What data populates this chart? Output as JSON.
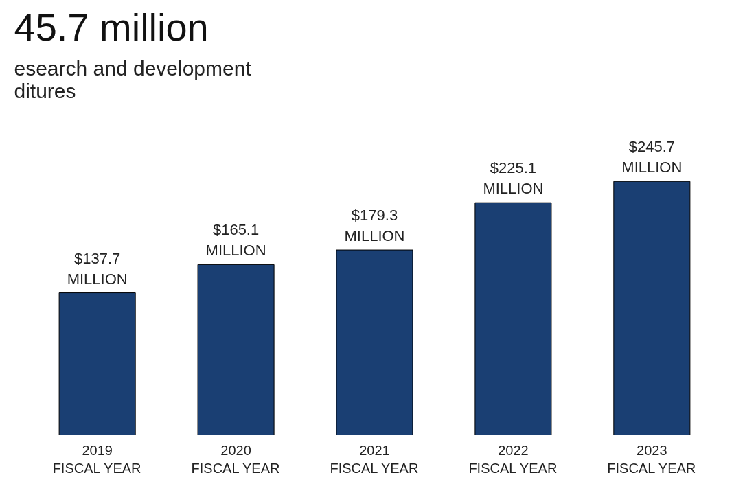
{
  "chart_data": {
    "type": "bar",
    "title": "45.7 million",
    "subtitle": "esearch and development\nditures",
    "categories": [
      "2019\nFISCAL YEAR",
      "2020\nFISCAL YEAR",
      "2021\nFISCAL YEAR",
      "2022\nFISCAL YEAR",
      "2023\nFISCAL YEAR"
    ],
    "values": [
      137.7,
      165.1,
      179.3,
      225.1,
      245.7
    ],
    "value_labels": [
      "$137.7\nMILLION",
      "$165.1\nMILLION",
      "$179.3\nMILLION",
      "$225.1\nMILLION",
      "$245.7\nMILLION"
    ],
    "color": "#1a3f73"
  }
}
